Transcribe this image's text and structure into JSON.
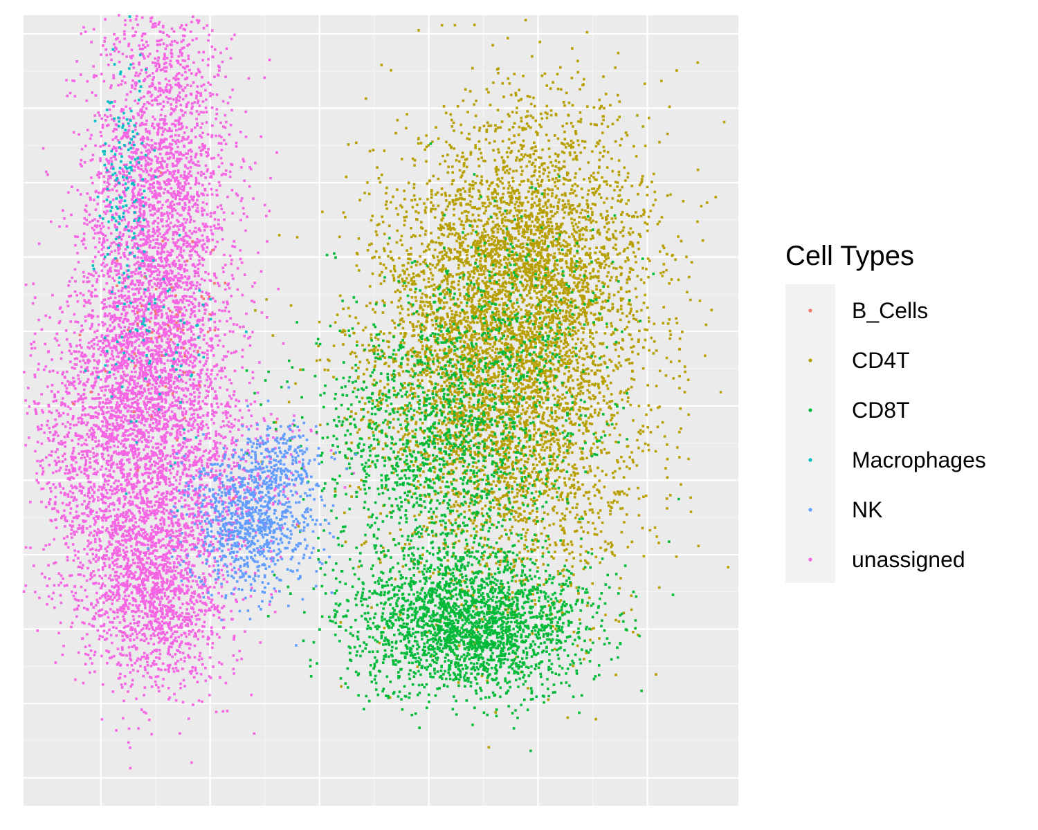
{
  "chart_data": {
    "type": "scatter",
    "title": "",
    "xlabel": "",
    "ylabel": "",
    "xlim": [
      -7.2,
      8.5
    ],
    "ylim": [
      -8.5,
      8.5
    ],
    "x_major_breaks": [
      -5.5,
      -3.1,
      -0.7,
      1.7,
      4.1,
      6.5
    ],
    "y_major_breaks": [
      -7.9,
      -6.3,
      -4.7,
      -3.1,
      -1.5,
      0.1,
      1.7,
      3.3,
      4.9,
      6.5,
      8.1
    ],
    "grid": true,
    "axis_text_shown": false,
    "legend": {
      "title": "Cell Types",
      "placement": "right",
      "entries": [
        "B_Cells",
        "CD4T",
        "CD8T",
        "Macrophages",
        "NK",
        "unassigned"
      ]
    },
    "series": [
      {
        "name": "unassigned",
        "color": "#F564E3",
        "clusters": [
          {
            "cx": -4.2,
            "cy": 4.6,
            "sx": 0.8,
            "sy": 2.2,
            "n": 2500
          },
          {
            "cx": -4.8,
            "cy": -1.0,
            "sx": 1.2,
            "sy": 1.6,
            "n": 2500
          },
          {
            "cx": -4.3,
            "cy": -3.8,
            "sx": 0.8,
            "sy": 1.1,
            "n": 1500
          },
          {
            "cx": -4.4,
            "cy": 1.3,
            "sx": 0.9,
            "sy": 1.2,
            "n": 1000
          },
          {
            "cx": -2.4,
            "cy": -1.4,
            "sx": 0.8,
            "sy": 0.7,
            "n": 220
          }
        ]
      },
      {
        "name": "CD4T",
        "color": "#B79F00",
        "clusters": [
          {
            "cx": 4.0,
            "cy": 3.3,
            "sx": 1.3,
            "sy": 1.7,
            "n": 2800
          },
          {
            "cx": 3.6,
            "cy": -0.4,
            "sx": 1.5,
            "sy": 2.0,
            "n": 2400
          },
          {
            "cx": 2.5,
            "cy": 1.5,
            "sx": 1.3,
            "sy": 1.6,
            "n": 1200
          }
        ]
      },
      {
        "name": "CD8T",
        "color": "#00BA38",
        "clusters": [
          {
            "cx": 2.6,
            "cy": -4.6,
            "sx": 1.3,
            "sy": 0.75,
            "n": 2300
          },
          {
            "cx": 1.7,
            "cy": -0.9,
            "sx": 1.3,
            "sy": 1.6,
            "n": 1300
          },
          {
            "cx": 3.4,
            "cy": 1.0,
            "sx": 1.2,
            "sy": 1.6,
            "n": 500
          }
        ]
      },
      {
        "name": "NK",
        "color": "#619CFF",
        "clusters": [
          {
            "cx": -2.2,
            "cy": -2.4,
            "sx": 0.7,
            "sy": 0.8,
            "n": 900
          },
          {
            "cx": -1.6,
            "cy": -1.0,
            "sx": 0.4,
            "sy": 0.4,
            "n": 150
          }
        ]
      },
      {
        "name": "Macrophages",
        "color": "#00BFC4",
        "clusters": [
          {
            "cx": -5.0,
            "cy": 5.0,
            "sx": 0.3,
            "sy": 1.4,
            "n": 150
          },
          {
            "cx": -4.3,
            "cy": 1.5,
            "sx": 0.7,
            "sy": 1.2,
            "n": 80
          }
        ]
      },
      {
        "name": "B_Cells",
        "color": "#F8766D",
        "clusters": [
          {
            "cx": -4.0,
            "cy": 1.5,
            "sx": 0.7,
            "sy": 1.2,
            "n": 60
          }
        ]
      }
    ]
  }
}
